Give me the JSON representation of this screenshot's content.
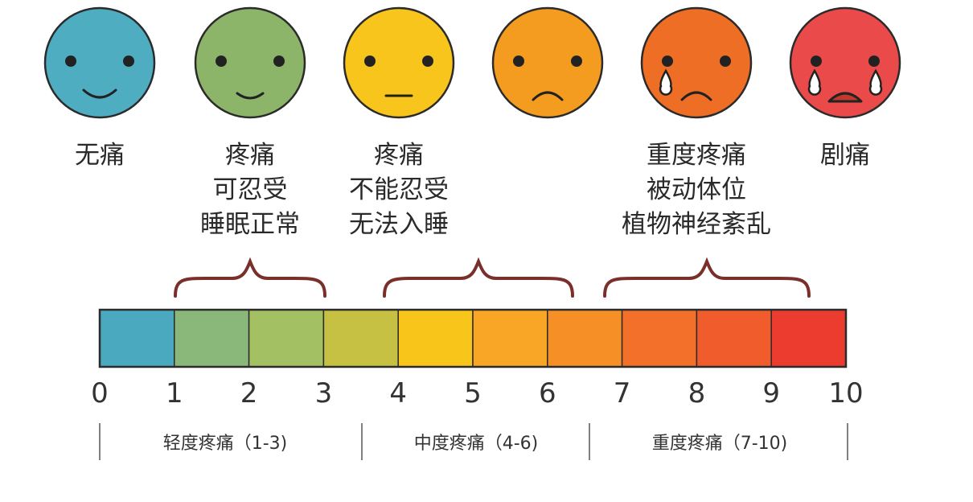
{
  "faces": [
    {
      "label_lines": [
        "无痛"
      ],
      "color": "#4fadc2",
      "expression": "happy",
      "tears": 0
    },
    {
      "label_lines": [
        "疼痛",
        "可忍受",
        "睡眠正常"
      ],
      "color": "#8db56a",
      "expression": "smile",
      "tears": 0
    },
    {
      "label_lines": [
        "疼痛",
        "不能忍受",
        "无法入睡"
      ],
      "color": "#f7c51c",
      "expression": "neutral",
      "tears": 0
    },
    {
      "label_lines": [],
      "color": "#f49c20",
      "expression": "sad",
      "tears": 0
    },
    {
      "label_lines": [
        "重度疼痛",
        "被动体位",
        "植物神经紊乱"
      ],
      "color": "#ef6e25",
      "expression": "sad",
      "tears": 1
    },
    {
      "label_lines": [
        "剧痛"
      ],
      "color": "#ea4a4a",
      "expression": "crying",
      "tears": 2
    }
  ],
  "scale": {
    "ticks": [
      "0",
      "1",
      "2",
      "3",
      "4",
      "5",
      "6",
      "7",
      "8",
      "9",
      "10"
    ],
    "segment_colors": [
      "#4aa9bf",
      "#8ab87a",
      "#a3c063",
      "#c6c142",
      "#f8c51b",
      "#f9a526",
      "#f58f26",
      "#f3702a",
      "#f15c2c",
      "#ec3b2f"
    ],
    "brace_color": "#7a2f2b"
  },
  "categories": [
    {
      "label": "轻度疼痛（1-3)"
    },
    {
      "label": "中度疼痛（4-6)"
    },
    {
      "label": "重度疼痛（7-10)"
    }
  ]
}
